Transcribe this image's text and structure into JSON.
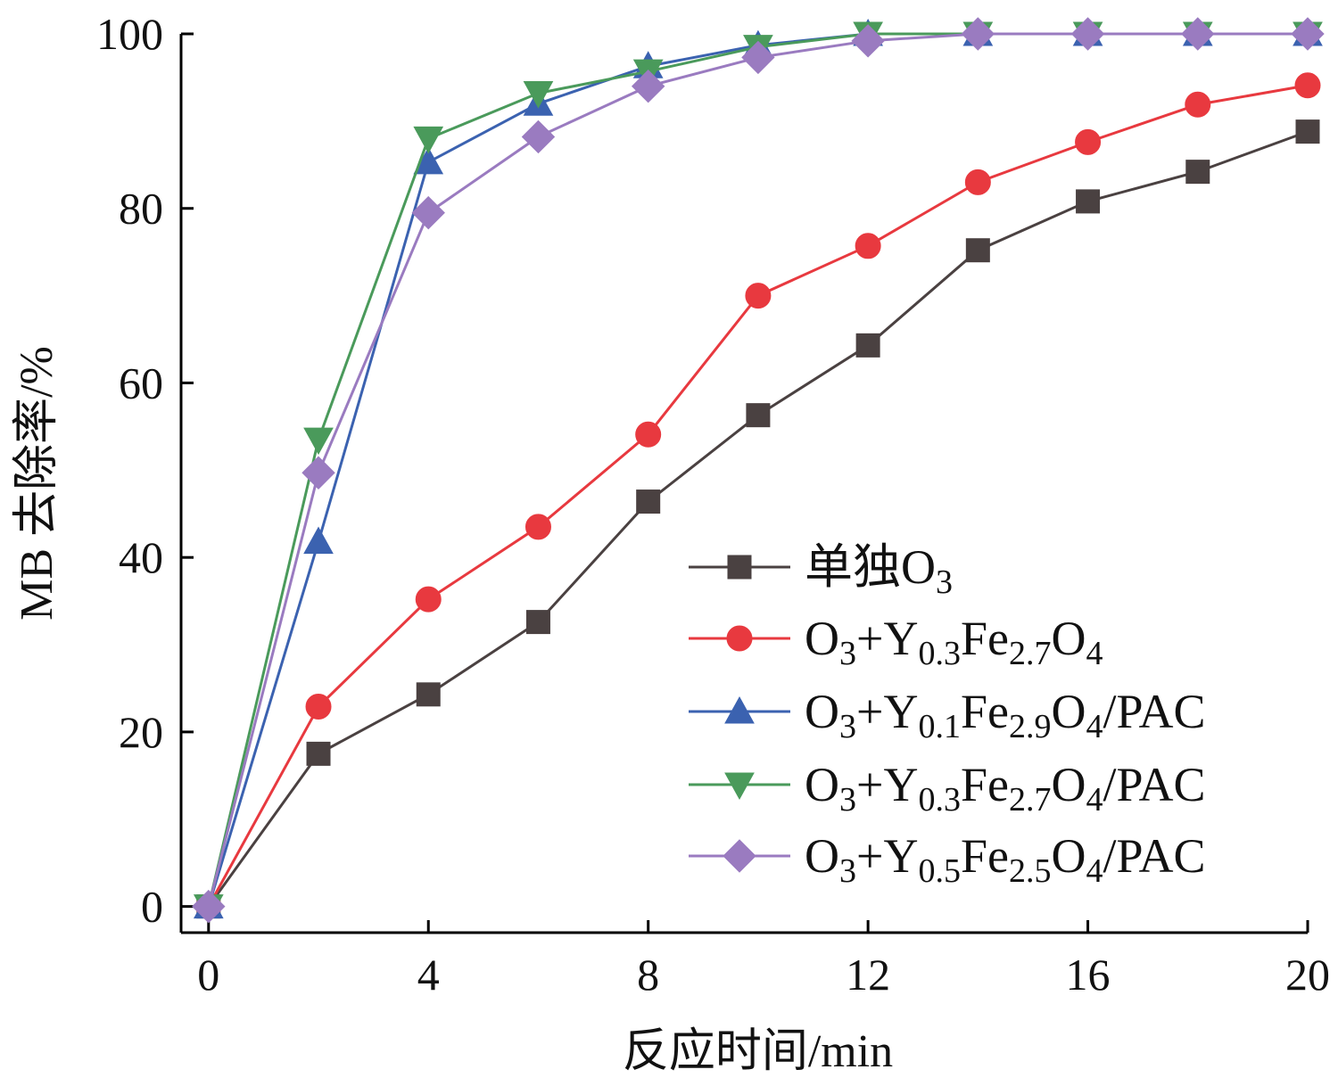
{
  "chart_data": {
    "type": "line",
    "title": "",
    "xlabel": "反应时间/min",
    "ylabel": "MB 去除率/%",
    "xlim": [
      -0.5,
      20
    ],
    "ylim": [
      -3,
      100
    ],
    "xticks": [
      0,
      4,
      8,
      12,
      16,
      20
    ],
    "yticks": [
      0,
      20,
      40,
      60,
      80,
      100
    ],
    "grid": false,
    "legend_position": "bottom-right",
    "x": [
      0,
      2,
      4,
      6,
      8,
      10,
      12,
      14,
      16,
      18,
      20
    ],
    "series": [
      {
        "label_parts": [
          {
            "t": "单独O"
          },
          {
            "t": "3",
            "sub": true
          }
        ],
        "marker": "square",
        "color": "#4a4141",
        "values": [
          0,
          17.5,
          24.3,
          32.6,
          46.4,
          56.3,
          64.3,
          75.2,
          80.8,
          84.2,
          88.8
        ]
      },
      {
        "label_parts": [
          {
            "t": "O"
          },
          {
            "t": "3",
            "sub": true
          },
          {
            "t": "+Y"
          },
          {
            "t": "0.3",
            "sub": true
          },
          {
            "t": "Fe"
          },
          {
            "t": "2.7",
            "sub": true
          },
          {
            "t": "O"
          },
          {
            "t": "4",
            "sub": true
          }
        ],
        "marker": "circle",
        "color": "#e8393f",
        "values": [
          0,
          22.9,
          35.2,
          43.5,
          54.1,
          70.0,
          75.7,
          83.0,
          87.6,
          91.9,
          94.1
        ]
      },
      {
        "label_parts": [
          {
            "t": "O"
          },
          {
            "t": "3",
            "sub": true
          },
          {
            "t": "+Y"
          },
          {
            "t": "0.1",
            "sub": true
          },
          {
            "t": "Fe"
          },
          {
            "t": "2.9",
            "sub": true
          },
          {
            "t": "O"
          },
          {
            "t": "4",
            "sub": true
          },
          {
            "t": "/PAC"
          }
        ],
        "marker": "triangle-up",
        "color": "#3b62b0",
        "values": [
          0,
          41.8,
          85.3,
          92.0,
          96.3,
          98.7,
          100,
          100,
          100,
          100,
          100
        ]
      },
      {
        "label_parts": [
          {
            "t": "O"
          },
          {
            "t": "3",
            "sub": true
          },
          {
            "t": "+Y"
          },
          {
            "t": "0.3",
            "sub": true
          },
          {
            "t": "Fe"
          },
          {
            "t": "2.7",
            "sub": true
          },
          {
            "t": "O"
          },
          {
            "t": "4",
            "sub": true
          },
          {
            "t": "/PAC"
          }
        ],
        "marker": "triangle-down",
        "color": "#4a9a5b",
        "values": [
          0,
          53.5,
          88.0,
          93.2,
          95.7,
          98.5,
          100,
          100,
          100,
          100,
          100
        ]
      },
      {
        "label_parts": [
          {
            "t": "O"
          },
          {
            "t": "3",
            "sub": true
          },
          {
            "t": "+Y"
          },
          {
            "t": "0.5",
            "sub": true
          },
          {
            "t": "Fe"
          },
          {
            "t": "2.5",
            "sub": true
          },
          {
            "t": "O"
          },
          {
            "t": "4",
            "sub": true
          },
          {
            "t": "/PAC"
          }
        ],
        "marker": "diamond",
        "color": "#9a7bc0",
        "values": [
          0,
          49.7,
          79.5,
          88.2,
          94.0,
          97.3,
          99.2,
          100,
          100,
          100,
          100
        ]
      }
    ]
  }
}
